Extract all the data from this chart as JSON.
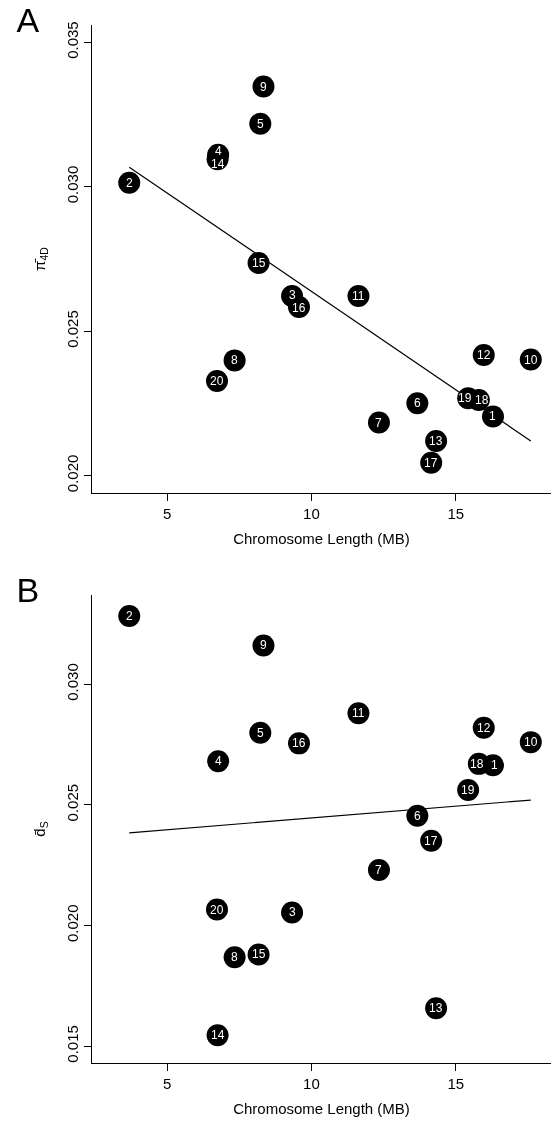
{
  "chart_data": [
    {
      "type": "scatter",
      "title": "A",
      "xlabel": "Chromosome Length (MB)",
      "ylabel": "π̄$_{4D}$",
      "marker": "circle",
      "xlim": [
        2.4,
        18.3
      ],
      "xticks": [
        5,
        10,
        15
      ],
      "ylim": [
        0.0194,
        0.0356
      ],
      "yticks": [
        {
          "value": 0.02,
          "label": "0.020"
        },
        {
          "value": 0.025,
          "label": "0.025"
        },
        {
          "value": 0.03,
          "label": "0.030"
        },
        {
          "value": 0.035,
          "label": "0.035"
        }
      ],
      "series": [
        {
          "type": "scatter",
          "color": "#000000",
          "x": [
            16.29,
            3.69,
            9.33,
            6.77,
            8.23,
            13.67,
            12.34,
            7.34,
            8.34,
            17.6,
            11.63,
            15.97,
            14.32,
            6.75,
            8.17,
            9.57,
            14.15,
            15.8,
            15.43,
            6.73
          ],
          "values": [
            0.02205,
            0.03014,
            0.02622,
            0.03111,
            0.03218,
            0.02251,
            0.02184,
            0.02399,
            0.03347,
            0.02402,
            0.02622,
            0.02418,
            0.0212,
            0.03095,
            0.02736,
            0.02584,
            0.02045,
            0.02262,
            0.02268,
            0.02328
          ]
        },
        {
          "type": "line",
          "color": "#000000",
          "marker": "none",
          "x": [
            3.69,
            17.6
          ],
          "values": [
            0.03068,
            0.0212
          ]
        }
      ],
      "annotations": [
        {
          "text": "1",
          "x": 16.29,
          "y": 0.02205
        },
        {
          "text": "2",
          "x": 3.69,
          "y": 0.03014
        },
        {
          "text": "3",
          "x": 9.33,
          "y": 0.02622
        },
        {
          "text": "4",
          "x": 6.77,
          "y": 0.03111
        },
        {
          "text": "5",
          "x": 8.23,
          "y": 0.03218
        },
        {
          "text": "6",
          "x": 13.67,
          "y": 0.02251
        },
        {
          "text": "7",
          "x": 12.34,
          "y": 0.02184
        },
        {
          "text": "8",
          "x": 7.34,
          "y": 0.02399
        },
        {
          "text": "9",
          "x": 8.34,
          "y": 0.03347
        },
        {
          "text": "10",
          "x": 17.6,
          "y": 0.02402
        },
        {
          "text": "11",
          "x": 11.63,
          "y": 0.02622
        },
        {
          "text": "12",
          "x": 15.97,
          "y": 0.02418
        },
        {
          "text": "13",
          "x": 14.32,
          "y": 0.0212
        },
        {
          "text": "14",
          "x": 6.75,
          "y": 0.03095
        },
        {
          "text": "15",
          "x": 8.17,
          "y": 0.02736
        },
        {
          "text": "16",
          "x": 9.57,
          "y": 0.02584
        },
        {
          "text": "17",
          "x": 14.15,
          "y": 0.02045
        },
        {
          "text": "18",
          "x": 15.8,
          "y": 0.02262
        },
        {
          "text": "19",
          "x": 15.43,
          "y": 0.02268
        },
        {
          "text": "20",
          "x": 6.73,
          "y": 0.02328
        }
      ]
    },
    {
      "type": "scatter",
      "title": "B",
      "xlabel": "Chromosome Length (MB)",
      "ylabel": "d̄$_{S}$",
      "marker": "circle",
      "xlim": [
        2.4,
        18.3
      ],
      "xticks": [
        5,
        10,
        15
      ],
      "ylim": [
        0.0143,
        0.0337
      ],
      "yticks": [
        {
          "value": 0.015,
          "label": "0.015"
        },
        {
          "value": 0.02,
          "label": "0.020"
        },
        {
          "value": 0.025,
          "label": "0.025"
        },
        {
          "value": 0.03,
          "label": "0.030"
        }
      ],
      "series": [
        {
          "type": "scatter",
          "color": "#000000",
          "x": [
            16.29,
            3.69,
            9.33,
            6.77,
            8.23,
            13.67,
            12.34,
            7.34,
            8.34,
            17.6,
            11.63,
            15.97,
            14.32,
            6.75,
            8.17,
            9.57,
            14.15,
            15.8,
            15.43,
            6.73
          ],
          "values": [
            0.02664,
            0.03283,
            0.02054,
            0.02681,
            0.02799,
            0.02455,
            0.0223,
            0.01868,
            0.03161,
            0.0276,
            0.0288,
            0.0282,
            0.01657,
            0.01545,
            0.0188,
            0.02755,
            0.02351,
            0.0267,
            0.02562,
            0.02066
          ]
        },
        {
          "type": "line",
          "color": "#000000",
          "marker": "none",
          "x": [
            3.69,
            17.6
          ],
          "values": [
            0.02384,
            0.0252
          ]
        }
      ],
      "annotations": [
        {
          "text": "1",
          "x": 16.29,
          "y": 0.02664
        },
        {
          "text": "2",
          "x": 3.69,
          "y": 0.03283
        },
        {
          "text": "3",
          "x": 9.33,
          "y": 0.02054
        },
        {
          "text": "4",
          "x": 6.77,
          "y": 0.02681
        },
        {
          "text": "5",
          "x": 8.23,
          "y": 0.02799
        },
        {
          "text": "6",
          "x": 13.67,
          "y": 0.02455
        },
        {
          "text": "7",
          "x": 12.34,
          "y": 0.0223
        },
        {
          "text": "8",
          "x": 7.34,
          "y": 0.01868
        },
        {
          "text": "9",
          "x": 8.34,
          "y": 0.03161
        },
        {
          "text": "10",
          "x": 17.6,
          "y": 0.0276
        },
        {
          "text": "11",
          "x": 11.63,
          "y": 0.0288
        },
        {
          "text": "12",
          "x": 15.97,
          "y": 0.0282
        },
        {
          "text": "13",
          "x": 14.32,
          "y": 0.01657
        },
        {
          "text": "14",
          "x": 6.75,
          "y": 0.01545
        },
        {
          "text": "15",
          "x": 8.17,
          "y": 0.0188
        },
        {
          "text": "16",
          "x": 9.57,
          "y": 0.02755
        },
        {
          "text": "17",
          "x": 14.15,
          "y": 0.02351
        },
        {
          "text": "18",
          "x": 15.8,
          "y": 0.0267
        },
        {
          "text": "19",
          "x": 15.43,
          "y": 0.02562
        },
        {
          "text": "20",
          "x": 6.73,
          "y": 0.02066
        }
      ]
    }
  ]
}
